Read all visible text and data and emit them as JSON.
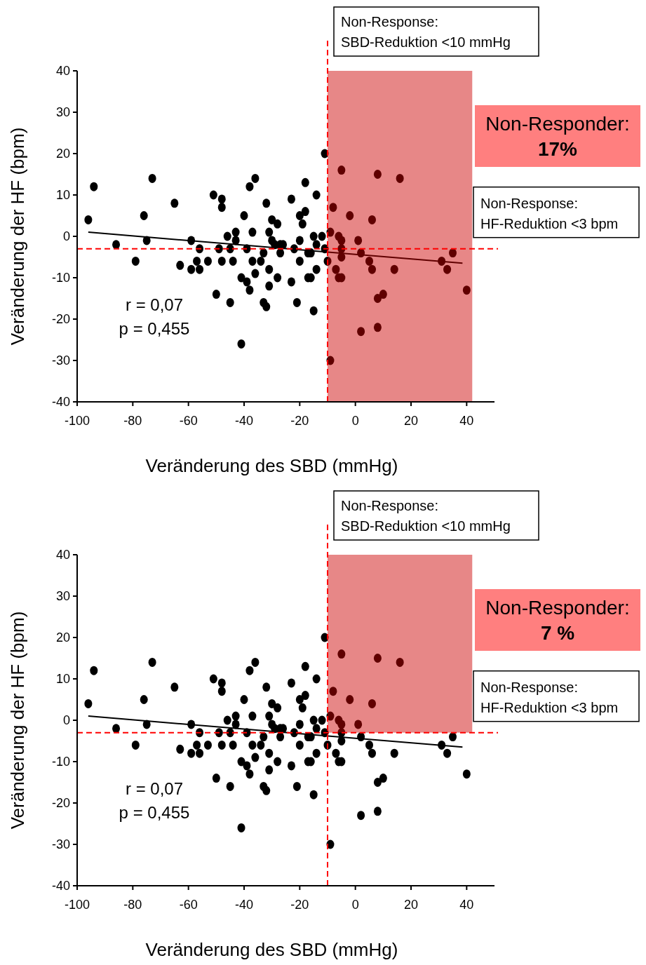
{
  "chart_data": [
    {
      "type": "scatter",
      "xlabel": "Veränderung des SBD (mmHg)",
      "ylabel": "Veränderung der HF (bpm)",
      "xlim": [
        -100,
        50
      ],
      "ylim": [
        -40,
        40
      ],
      "xticks": [
        -100,
        -80,
        -60,
        -40,
        -20,
        0,
        20,
        40
      ],
      "yticks": [
        -40,
        -30,
        -20,
        -10,
        0,
        10,
        20,
        30,
        40
      ],
      "series": [
        {
          "type": "scatter",
          "marker": "circle",
          "color": "#000000",
          "x": [
            -96,
            -94,
            -86,
            -79,
            -76,
            -75,
            -73,
            -65,
            -63,
            -59,
            -59,
            -57,
            -56,
            -56,
            -53,
            -51,
            -48,
            -48,
            -50,
            -49,
            -48,
            -46,
            -45,
            -44,
            -45,
            -43,
            -43,
            -41,
            -41,
            -40,
            -39,
            -39,
            -38,
            -38,
            -36,
            -37,
            -37,
            -36,
            -34,
            -33,
            -33,
            -32,
            -32,
            -31,
            -31,
            -31,
            -30,
            -30,
            -29,
            -28,
            -28,
            -27,
            -27,
            -26,
            -23,
            -23,
            -22,
            -21,
            -20,
            -19,
            -18,
            -18,
            -20,
            -20,
            -17,
            -16,
            -17,
            -16,
            -15,
            -14,
            -15,
            -14,
            -14,
            -12,
            -11,
            -11,
            -10,
            -9,
            -5,
            -8,
            -2,
            6,
            8,
            16,
            -9,
            -6,
            -5,
            1,
            -5,
            -5,
            2,
            -7,
            -6,
            -5,
            5,
            6,
            14,
            10,
            8,
            2,
            8,
            31,
            35,
            33,
            40
          ],
          "values": [
            4,
            12,
            -2,
            -6,
            5,
            -1,
            14,
            8,
            -7,
            -1,
            -8,
            -6,
            -8,
            -3,
            -6,
            10,
            9,
            7,
            -14,
            -3,
            -6,
            0,
            -16,
            -6,
            -3,
            1,
            -1,
            -10,
            -26,
            5,
            -3,
            -11,
            -13,
            12,
            14,
            1,
            -6,
            -9,
            -6,
            -4,
            -16,
            -17,
            8,
            1,
            -8,
            -12,
            4,
            -1,
            -2,
            3,
            -10,
            -2,
            -4,
            -2,
            9,
            -11,
            -3,
            -16,
            5,
            3,
            13,
            6,
            -1,
            -6,
            -4,
            -4,
            -10,
            -10,
            -18,
            10,
            0,
            -2,
            -8,
            0,
            20,
            -3,
            -6,
            -30,
            16,
            7,
            5,
            4,
            15,
            14,
            1,
            0,
            -1,
            -1,
            -3,
            -5,
            -4,
            -8,
            -10,
            -10,
            -6,
            -8,
            -8,
            -14,
            -15,
            -23,
            -22,
            -6,
            -4,
            -8,
            -13
          ]
        },
        {
          "type": "line",
          "color": "#000000",
          "x": [
            -96,
            38.5
          ],
          "values": [
            1,
            -6.5
          ]
        }
      ],
      "ref_lines": [
        {
          "axis": "x",
          "value": -10,
          "label": "Non-Response:\nSBD-Reduktion <10 mmHg",
          "color": "#ff0000",
          "line_style": "dashed"
        },
        {
          "axis": "y",
          "value": -3,
          "label": "Non-Response:\nHF-Reduktion <3 bpm",
          "color": "#ff0000",
          "line_style": "dashed"
        }
      ],
      "bands": [
        {
          "axis": "x",
          "from": -10,
          "to": 42,
          "color": "#cd0000"
        }
      ],
      "annotations": [
        "r = 0,07\np = 0,455",
        "Non-Responder:\n17%"
      ]
    },
    {
      "type": "scatter",
      "xlabel": "Veränderung des SBD (mmHg)",
      "ylabel": "Veränderung der HF (bpm)",
      "xlim": [
        -100,
        50
      ],
      "ylim": [
        -40,
        40
      ],
      "xticks": [
        -100,
        -80,
        -60,
        -40,
        -20,
        0,
        20,
        40
      ],
      "yticks": [
        -40,
        -30,
        -20,
        -10,
        0,
        10,
        20,
        30,
        40
      ],
      "series": [
        {
          "type": "scatter",
          "marker": "circle",
          "color": "#000000",
          "x": [
            -96,
            -94,
            -86,
            -79,
            -76,
            -75,
            -73,
            -65,
            -63,
            -59,
            -59,
            -57,
            -56,
            -56,
            -53,
            -51,
            -48,
            -48,
            -50,
            -49,
            -48,
            -46,
            -45,
            -44,
            -45,
            -43,
            -43,
            -41,
            -41,
            -40,
            -39,
            -39,
            -38,
            -38,
            -36,
            -37,
            -37,
            -36,
            -34,
            -33,
            -33,
            -32,
            -32,
            -31,
            -31,
            -31,
            -30,
            -30,
            -29,
            -28,
            -28,
            -27,
            -27,
            -26,
            -23,
            -23,
            -22,
            -21,
            -20,
            -19,
            -18,
            -18,
            -20,
            -20,
            -17,
            -16,
            -17,
            -16,
            -15,
            -14,
            -15,
            -14,
            -14,
            -12,
            -11,
            -11,
            -10,
            -9,
            -5,
            -8,
            -2,
            6,
            8,
            16,
            -9,
            -6,
            -5,
            1,
            -5,
            -5,
            2,
            -7,
            -6,
            -5,
            5,
            6,
            14,
            10,
            8,
            2,
            8,
            31,
            35,
            33,
            40
          ],
          "values": [
            4,
            12,
            -2,
            -6,
            5,
            -1,
            14,
            8,
            -7,
            -1,
            -8,
            -6,
            -8,
            -3,
            -6,
            10,
            9,
            7,
            -14,
            -3,
            -6,
            0,
            -16,
            -6,
            -3,
            1,
            -1,
            -10,
            -26,
            5,
            -3,
            -11,
            -13,
            12,
            14,
            1,
            -6,
            -9,
            -6,
            -4,
            -16,
            -17,
            8,
            1,
            -8,
            -12,
            4,
            -1,
            -2,
            3,
            -10,
            -2,
            -4,
            -2,
            9,
            -11,
            -3,
            -16,
            5,
            3,
            13,
            6,
            -1,
            -6,
            -4,
            -4,
            -10,
            -10,
            -18,
            10,
            0,
            -2,
            -8,
            0,
            20,
            -3,
            -6,
            -30,
            16,
            7,
            5,
            4,
            15,
            14,
            1,
            0,
            -1,
            -1,
            -3,
            -5,
            -4,
            -8,
            -10,
            -10,
            -6,
            -8,
            -8,
            -14,
            -15,
            -23,
            -22,
            -6,
            -4,
            -8,
            -13
          ]
        },
        {
          "type": "line",
          "color": "#000000",
          "x": [
            -96,
            38.5
          ],
          "values": [
            1,
            -6.5
          ]
        },
        {
          "type": "bar",
          "color": "#cd0000",
          "x": [
            16
          ],
          "base": [
            -3
          ],
          "values": [
            43
          ]
        }
      ],
      "ref_lines": [
        {
          "axis": "x",
          "value": -10,
          "label": "Non-Response:\nSBD-Reduktion <10 mmHg",
          "color": "#ff0000",
          "line_style": "dashed"
        },
        {
          "axis": "y",
          "value": -3,
          "label": "Non-Response:\nHF-Reduktion <3 bpm",
          "color": "#ff0000",
          "line_style": "dashed"
        }
      ],
      "annotations": [
        "r = 0,07\np = 0,455",
        "Non-Responder:\n7 %"
      ]
    }
  ]
}
